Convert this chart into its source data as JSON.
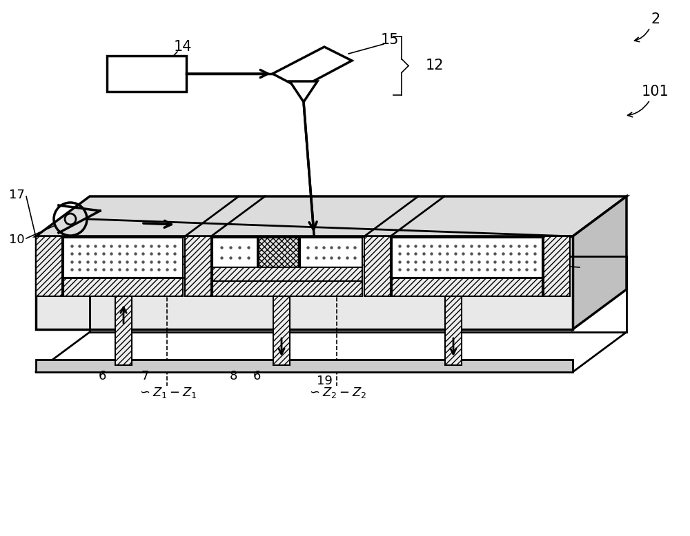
{
  "bg_color": "#ffffff",
  "line_color": "#000000"
}
